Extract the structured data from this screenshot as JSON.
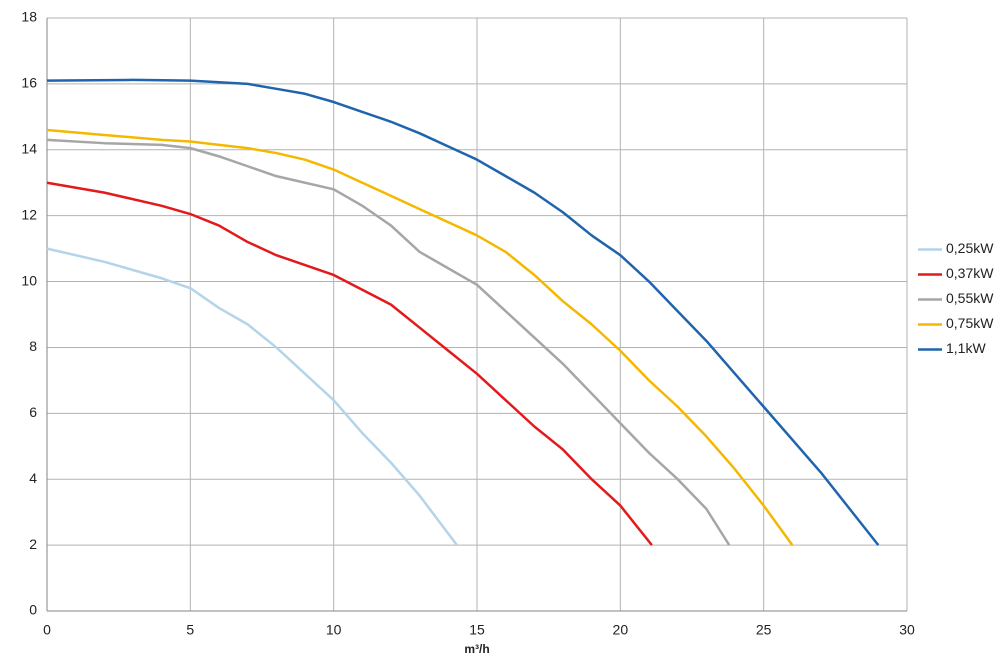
{
  "chart_data": {
    "type": "line",
    "x_label": "m³/h",
    "xlim": [
      0,
      30
    ],
    "xticks": [
      0,
      5,
      10,
      15,
      20,
      25,
      30
    ],
    "ylim": [
      0,
      18
    ],
    "yticks": [
      0,
      2,
      4,
      6,
      8,
      10,
      12,
      14,
      16,
      18
    ],
    "grid": true,
    "legend": "right",
    "series": [
      {
        "name": "0,25kW",
        "color": "#b4d4ea",
        "x": [
          0,
          2,
          4,
          5,
          6,
          7,
          8,
          9,
          10,
          11,
          12,
          13,
          14.3
        ],
        "values": [
          11,
          10.6,
          10.1,
          9.8,
          9.2,
          8.7,
          8,
          7.2,
          6.4,
          5.4,
          4.5,
          3.5,
          2
        ]
      },
      {
        "name": "0,37kW",
        "color": "#e31a1c",
        "x": [
          0,
          2,
          4,
          5,
          6,
          7,
          8,
          10,
          12,
          13,
          14,
          15,
          16,
          17,
          18,
          19,
          20,
          21.1
        ],
        "values": [
          13,
          12.7,
          12.3,
          12.05,
          11.7,
          11.2,
          10.8,
          10.2,
          9.3,
          8.6,
          7.9,
          7.2,
          6.4,
          5.6,
          4.9,
          4,
          3.2,
          2
        ]
      },
      {
        "name": "0,55kW",
        "color": "#a6a6a6",
        "x": [
          0,
          2,
          4,
          5,
          6,
          7,
          8,
          10,
          11,
          12,
          13,
          14,
          15,
          16,
          17,
          18,
          19,
          20,
          21,
          22,
          23,
          23.8
        ],
        "values": [
          14.3,
          14.2,
          14.15,
          14.05,
          13.8,
          13.5,
          13.2,
          12.8,
          12.3,
          11.7,
          10.9,
          10.4,
          9.9,
          9.1,
          8.3,
          7.5,
          6.6,
          5.7,
          4.8,
          4,
          3.1,
          2
        ]
      },
      {
        "name": "0,75kW",
        "color": "#f5b800",
        "x": [
          0,
          2,
          4,
          5,
          6,
          7,
          8,
          9,
          10,
          11,
          12,
          13,
          14,
          15,
          16,
          17,
          18,
          19,
          20,
          21,
          22,
          23,
          24,
          25,
          26
        ],
        "values": [
          14.6,
          14.45,
          14.3,
          14.25,
          14.15,
          14.05,
          13.9,
          13.7,
          13.4,
          13,
          12.6,
          12.2,
          11.8,
          11.4,
          10.9,
          10.2,
          9.4,
          8.7,
          7.9,
          7,
          6.2,
          5.3,
          4.3,
          3.2,
          2
        ]
      },
      {
        "name": "1,1kW",
        "color": "#1f64ad",
        "x": [
          0,
          3,
          5,
          6,
          7,
          8,
          9,
          10,
          11,
          12,
          13,
          14,
          15,
          16,
          17,
          18,
          19,
          20,
          21,
          22,
          23,
          24,
          25,
          26,
          27,
          28,
          29
        ],
        "values": [
          16.1,
          16.12,
          16.1,
          16.05,
          16,
          15.85,
          15.7,
          15.45,
          15.15,
          14.85,
          14.5,
          14.1,
          13.7,
          13.2,
          12.7,
          12.1,
          11.4,
          10.8,
          10,
          9.1,
          8.2,
          7.2,
          6.2,
          5.2,
          4.2,
          3.1,
          2
        ]
      }
    ]
  }
}
